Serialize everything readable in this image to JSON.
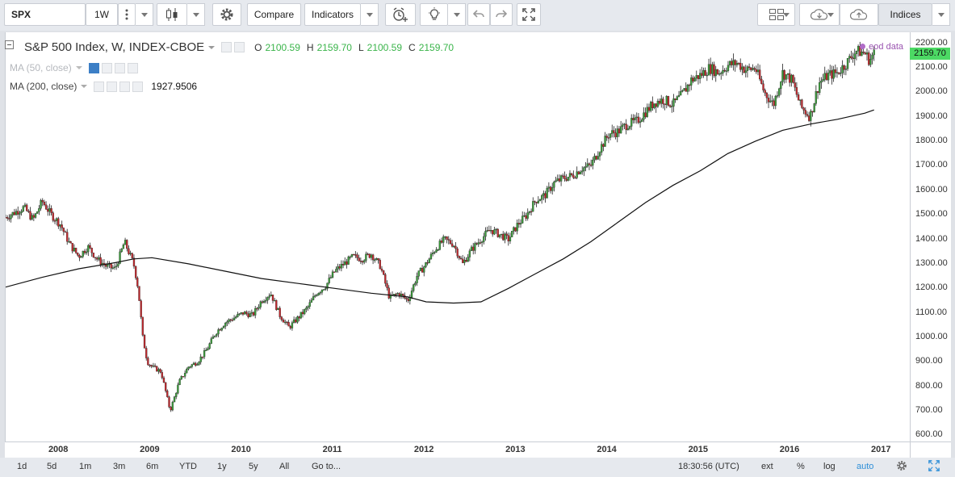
{
  "toolbar": {
    "symbol": "SPX",
    "interval": "1W",
    "compare_label": "Compare",
    "indicators_label": "Indicators",
    "indices_label": "Indices"
  },
  "legend": {
    "title": "S&P 500 Index, W, INDEX-CBOE",
    "o_label": "O",
    "o_value": "2100.59",
    "h_label": "H",
    "h_value": "2159.70",
    "l_label": "L",
    "l_value": "2100.59",
    "c_label": "C",
    "c_value": "2159.70",
    "ma50": "MA (50, close)",
    "ma200": "MA (200, close)",
    "ma200_value": "1927.9506",
    "eod": "eod data"
  },
  "last_price": "2159.70",
  "price_ticks": [
    "2200.00",
    "2100.00",
    "2000.00",
    "1900.00",
    "1800.00",
    "1700.00",
    "1600.00",
    "1500.00",
    "1400.00",
    "1300.00",
    "1200.00",
    "1100.00",
    "1000.00",
    "900.00",
    "800.00",
    "700.00",
    "600.00"
  ],
  "time_ticks": [
    "2008",
    "2009",
    "2010",
    "2011",
    "2012",
    "2013",
    "2014",
    "2015",
    "2016",
    "2017"
  ],
  "bottom": {
    "ranges": [
      "1d",
      "5d",
      "1m",
      "3m",
      "6m",
      "YTD",
      "1y",
      "5y",
      "All"
    ],
    "goto": "Go to...",
    "clock": "18:30:56 (UTC)",
    "ext": "ext",
    "pct": "%",
    "log": "log",
    "auto": "auto"
  },
  "colors": {
    "up": "#3a9a3a",
    "down": "#c0282d",
    "ma": "#111111",
    "last_price": "#4cd964"
  },
  "chart_data": {
    "type": "line",
    "note": "weekly candlestick price series, approximated by weekly closes sampled roughly monthly",
    "x": [
      2007.4,
      2007.5,
      2007.6,
      2007.7,
      2007.8,
      2007.9,
      2008.0,
      2008.1,
      2008.2,
      2008.3,
      2008.4,
      2008.5,
      2008.6,
      2008.7,
      2008.8,
      2008.85,
      2008.9,
      2008.95,
      2009.0,
      2009.1,
      2009.15,
      2009.2,
      2009.3,
      2009.4,
      2009.5,
      2009.6,
      2009.7,
      2009.8,
      2009.9,
      2010.0,
      2010.1,
      2010.2,
      2010.3,
      2010.4,
      2010.5,
      2010.6,
      2010.7,
      2010.8,
      2010.9,
      2011.0,
      2011.1,
      2011.2,
      2011.3,
      2011.4,
      2011.5,
      2011.6,
      2011.7,
      2011.8,
      2011.9,
      2012.0,
      2012.1,
      2012.2,
      2012.3,
      2012.4,
      2012.5,
      2012.6,
      2012.7,
      2012.8,
      2012.9,
      2013.0,
      2013.1,
      2013.2,
      2013.3,
      2013.4,
      2013.5,
      2013.6,
      2013.7,
      2013.8,
      2013.9,
      2014.0,
      2014.1,
      2014.2,
      2014.3,
      2014.4,
      2014.5,
      2014.6,
      2014.7,
      2014.8,
      2014.9,
      2015.0,
      2015.1,
      2015.2,
      2015.3,
      2015.4,
      2015.5,
      2015.6,
      2015.7,
      2015.8,
      2015.9,
      2016.0,
      2016.1,
      2016.2,
      2016.3,
      2016.4,
      2016.5,
      2016.6,
      2016.7,
      2016.8,
      2016.85,
      2016.9
    ],
    "values": [
      1490,
      1510,
      1530,
      1480,
      1555,
      1500,
      1460,
      1380,
      1330,
      1370,
      1320,
      1290,
      1280,
      1390,
      1300,
      1200,
      1000,
      900,
      880,
      860,
      780,
      700,
      820,
      880,
      900,
      950,
      1020,
      1060,
      1080,
      1100,
      1090,
      1150,
      1180,
      1090,
      1040,
      1080,
      1120,
      1180,
      1210,
      1270,
      1300,
      1330,
      1320,
      1340,
      1290,
      1160,
      1180,
      1150,
      1250,
      1300,
      1360,
      1400,
      1380,
      1300,
      1360,
      1400,
      1440,
      1420,
      1400,
      1460,
      1500,
      1560,
      1580,
      1630,
      1650,
      1660,
      1690,
      1700,
      1770,
      1830,
      1840,
      1870,
      1880,
      1920,
      1960,
      1970,
      1950,
      1990,
      2050,
      2070,
      2100,
      2080,
      2110,
      2120,
      2090,
      2100,
      2000,
      1950,
      2080,
      2050,
      1940,
      1900,
      2040,
      2070,
      2080,
      2120,
      2170,
      2160,
      2130,
      2159.7
    ],
    "ma200_x": [
      2007.4,
      2007.8,
      2008.2,
      2008.6,
      2008.8,
      2009.0,
      2009.4,
      2009.8,
      2010.2,
      2010.6,
      2011.0,
      2011.4,
      2011.8,
      2012.0,
      2012.3,
      2012.6,
      2012.9,
      2013.2,
      2013.5,
      2013.8,
      2014.1,
      2014.4,
      2014.7,
      2015.0,
      2015.3,
      2015.6,
      2015.9,
      2016.2,
      2016.5,
      2016.8,
      2016.9
    ],
    "ma200": [
      1205,
      1245,
      1280,
      1305,
      1320,
      1325,
      1300,
      1270,
      1240,
      1220,
      1200,
      1180,
      1165,
      1145,
      1140,
      1145,
      1200,
      1260,
      1320,
      1390,
      1470,
      1550,
      1620,
      1680,
      1750,
      1800,
      1845,
      1870,
      1890,
      1915,
      1928
    ],
    "xlim": [
      2007.4,
      2017.3
    ],
    "ylim": [
      575,
      2245
    ],
    "xlabel": "",
    "ylabel": ""
  }
}
